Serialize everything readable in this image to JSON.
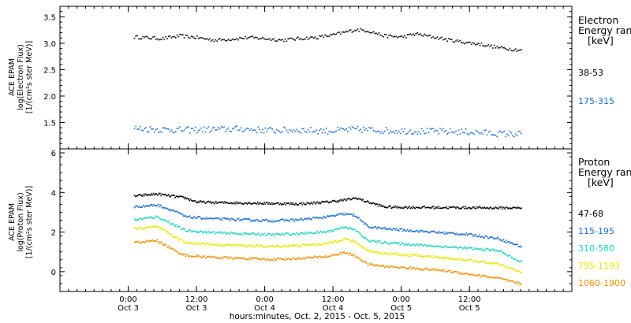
{
  "chart_data": [
    {
      "type": "scatter",
      "panel": "electron",
      "ylabel_lines": [
        "ACE EPAM",
        "log(Electron Flux)",
        "[1/(cm²s ster MeV)]"
      ],
      "legend_title_lines": [
        "Electron",
        "Energy range",
        "[keV]"
      ],
      "ylim": [
        1.0,
        3.7
      ],
      "yticks": [
        "1.5",
        "2.0",
        "2.5",
        "3.0",
        "3.5"
      ],
      "ytick_values": [
        1.5,
        2.0,
        2.5,
        3.0,
        3.5
      ],
      "grid": false,
      "legend_position": "right",
      "series": [
        {
          "name": "38-53",
          "color": "#000000",
          "x": [
            2,
            12,
            18,
            24,
            30,
            36,
            42,
            48,
            54,
            60,
            66,
            72,
            76,
            80,
            84,
            90,
            96,
            101,
            106,
            112,
            118,
            124,
            130,
            138
          ],
          "y": [
            3.13,
            3.1,
            3.15,
            3.12,
            3.07,
            3.09,
            3.12,
            3.1,
            3.07,
            3.1,
            3.12,
            3.17,
            3.22,
            3.27,
            3.25,
            3.15,
            3.13,
            3.19,
            3.14,
            3.08,
            3.03,
            2.99,
            2.93,
            2.88
          ]
        },
        {
          "name": "175-315",
          "color": "#1a6fd0",
          "x": [
            2,
            10,
            20,
            30,
            40,
            50,
            60,
            70,
            80,
            90,
            100,
            110,
            120,
            130,
            138
          ],
          "y": [
            1.4,
            1.38,
            1.37,
            1.38,
            1.39,
            1.36,
            1.37,
            1.35,
            1.38,
            1.36,
            1.35,
            1.34,
            1.33,
            1.3,
            1.29
          ]
        }
      ]
    },
    {
      "type": "scatter",
      "panel": "proton",
      "ylabel_lines": [
        "ACE EPAM",
        "log(Proton Flux)",
        "[1/(cm²s ster MeV)]"
      ],
      "legend_title_lines": [
        "Proton",
        "Energy range",
        "[keV]"
      ],
      "ylim": [
        -1.0,
        6.2
      ],
      "yticks": [
        "0",
        "2",
        "4",
        "6"
      ],
      "ytick_values": [
        0,
        2,
        4,
        6
      ],
      "grid": false,
      "legend_position": "right",
      "series": [
        {
          "name": "47-68",
          "color": "#000000",
          "x": [
            2,
            10,
            20,
            24,
            30,
            40,
            50,
            60,
            70,
            76,
            80,
            84,
            90,
            96,
            110,
            120,
            130,
            138
          ],
          "y": [
            3.85,
            3.95,
            3.75,
            3.55,
            3.52,
            3.5,
            3.48,
            3.45,
            3.55,
            3.65,
            3.75,
            3.55,
            3.3,
            3.28,
            3.27,
            3.26,
            3.25,
            3.25
          ]
        },
        {
          "name": "115-195",
          "color": "#1a6fd0",
          "x": [
            2,
            10,
            16,
            20,
            30,
            40,
            50,
            60,
            70,
            76,
            80,
            84,
            90,
            100,
            110,
            120,
            130,
            138
          ],
          "y": [
            3.3,
            3.4,
            3.1,
            2.8,
            2.7,
            2.65,
            2.6,
            2.65,
            2.8,
            2.95,
            2.85,
            2.3,
            2.2,
            2.1,
            2.0,
            1.9,
            1.7,
            1.3
          ]
        },
        {
          "name": "310-580",
          "color": "#22d3c0",
          "x": [
            2,
            10,
            16,
            20,
            30,
            40,
            50,
            60,
            70,
            76,
            80,
            84,
            90,
            100,
            110,
            120,
            130,
            138
          ],
          "y": [
            2.65,
            2.8,
            2.4,
            2.1,
            2.0,
            1.95,
            1.9,
            1.95,
            2.05,
            2.3,
            2.1,
            1.6,
            1.5,
            1.4,
            1.3,
            1.2,
            1.1,
            0.5
          ]
        },
        {
          "name": "795-1193",
          "color": "#e5e600",
          "x": [
            2,
            10,
            16,
            20,
            30,
            40,
            50,
            60,
            70,
            76,
            80,
            84,
            90,
            100,
            110,
            120,
            130,
            138
          ],
          "y": [
            2.2,
            2.3,
            1.8,
            1.5,
            1.4,
            1.35,
            1.3,
            1.35,
            1.45,
            1.7,
            1.5,
            1.1,
            0.95,
            0.85,
            0.75,
            0.6,
            0.4,
            0.0
          ]
        },
        {
          "name": "1060-1900",
          "color": "#f0900a",
          "x": [
            2,
            10,
            16,
            20,
            30,
            40,
            50,
            60,
            70,
            76,
            80,
            84,
            90,
            100,
            110,
            120,
            130,
            138
          ],
          "y": [
            1.5,
            1.6,
            1.1,
            0.85,
            0.75,
            0.7,
            0.65,
            0.7,
            0.8,
            1.0,
            0.8,
            0.4,
            0.3,
            0.2,
            0.1,
            -0.1,
            -0.3,
            -0.6
          ]
        }
      ]
    }
  ],
  "x_axis": {
    "range_hours": [
      -24,
      156
    ],
    "ticks": [
      {
        "hour": 0,
        "time": "0:00",
        "date": "Oct 3"
      },
      {
        "hour": 24,
        "time": "12:00",
        "date": "Oct 3"
      },
      {
        "hour": 48,
        "time": "0:00",
        "date": "Oct 4"
      },
      {
        "hour": 72,
        "time": "12:00",
        "date": "Oct 4"
      },
      {
        "hour": 96,
        "time": "0:00",
        "date": "Oct 5"
      },
      {
        "hour": 120,
        "time": "12:00",
        "date": "Oct 5"
      }
    ],
    "label": "hours:minutes, Oct.  2, 2015 - Oct.  5, 2015"
  }
}
